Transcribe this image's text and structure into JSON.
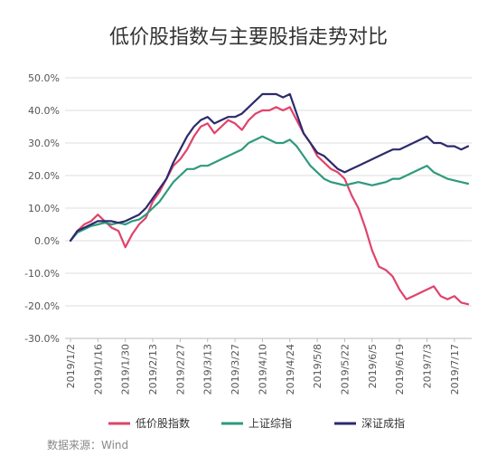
{
  "chart_data": {
    "type": "line",
    "title": "低价股指数与主要股指走势对比",
    "xlabel": "",
    "ylabel": "",
    "ylim": [
      -30,
      50
    ],
    "ytick_labels": [
      "50.0%",
      "40.0%",
      "30.0%",
      "20.0%",
      "10.0%",
      "0.0%",
      "-10.0%",
      "-20.0%",
      "-30.0%"
    ],
    "x_ticks": [
      "2019/1/2",
      "2019/1/16",
      "2019/1/30",
      "2019/2/13",
      "2019/2/27",
      "2019/3/13",
      "2019/3/27",
      "2019/4/10",
      "2019/4/24",
      "2019/5/8",
      "2019/5/22",
      "2019/6/5",
      "2019/6/19",
      "2019/7/3",
      "2019/7/17"
    ],
    "grid": true,
    "legend_position": "bottom",
    "source_note": "数据来源：Wind",
    "x": [
      "2019/1/2",
      "2019/1/6",
      "2019/1/9",
      "2019/1/13",
      "2019/1/16",
      "2019/1/20",
      "2019/1/23",
      "2019/1/27",
      "2019/1/30",
      "2019/2/3",
      "2019/2/6",
      "2019/2/10",
      "2019/2/13",
      "2019/2/17",
      "2019/2/20",
      "2019/2/24",
      "2019/2/27",
      "2019/3/3",
      "2019/3/6",
      "2019/3/10",
      "2019/3/13",
      "2019/3/17",
      "2019/3/20",
      "2019/3/24",
      "2019/3/27",
      "2019/3/31",
      "2019/4/3",
      "2019/4/7",
      "2019/4/10",
      "2019/4/14",
      "2019/4/17",
      "2019/4/21",
      "2019/4/24",
      "2019/4/28",
      "2019/5/1",
      "2019/5/5",
      "2019/5/8",
      "2019/5/12",
      "2019/5/15",
      "2019/5/19",
      "2019/5/22",
      "2019/5/26",
      "2019/5/29",
      "2019/6/2",
      "2019/6/5",
      "2019/6/9",
      "2019/6/12",
      "2019/6/16",
      "2019/6/19",
      "2019/6/23",
      "2019/6/26",
      "2019/6/30",
      "2019/7/3",
      "2019/7/7",
      "2019/7/10",
      "2019/7/14",
      "2019/7/17",
      "2019/7/21",
      "2019/7/24"
    ],
    "series": [
      {
        "name": "低价股指数",
        "color": "#e0436b",
        "values": [
          0,
          3,
          5,
          6,
          8,
          6,
          4,
          3,
          -2,
          2,
          5,
          7,
          12,
          15,
          19,
          23,
          25,
          28,
          32,
          35,
          36,
          33,
          35,
          37,
          36,
          34,
          37,
          39,
          40,
          40,
          41,
          40,
          41,
          37,
          33,
          30,
          26,
          24,
          22,
          21,
          19,
          14,
          10,
          4,
          -3,
          -8,
          -9,
          -11,
          -15,
          -18,
          -17,
          -16,
          -15,
          -14,
          -17,
          -18,
          -17,
          -19,
          -19.5
        ]
      },
      {
        "name": "上证综指",
        "color": "#2e9a7c",
        "values": [
          0,
          2.5,
          3.5,
          4.5,
          5,
          5.5,
          5,
          5.5,
          5,
          6,
          6.5,
          8,
          10,
          12,
          15,
          18,
          20,
          22,
          22,
          23,
          23,
          24,
          25,
          26,
          27,
          28,
          30,
          31,
          32,
          31,
          30,
          30,
          31,
          29,
          26,
          23,
          21,
          19,
          18,
          17.5,
          17,
          17.5,
          18,
          17.5,
          17,
          17.5,
          18,
          19,
          19,
          20,
          21,
          22,
          23,
          21,
          20,
          19,
          18.5,
          18,
          17.5
        ]
      },
      {
        "name": "深证成指",
        "color": "#2d2a6b",
        "values": [
          0,
          3,
          4,
          5,
          6,
          6,
          6,
          5.5,
          6,
          7,
          8,
          10,
          13,
          16,
          19,
          24,
          28,
          32,
          35,
          37,
          38,
          36,
          37,
          38,
          38,
          39,
          41,
          43,
          45,
          45,
          45,
          44,
          45,
          39,
          33,
          30,
          27,
          26,
          24,
          22,
          21,
          22,
          23,
          24,
          25,
          26,
          27,
          28,
          28,
          29,
          30,
          31,
          32,
          30,
          30,
          29,
          29,
          28,
          29
        ]
      }
    ]
  }
}
